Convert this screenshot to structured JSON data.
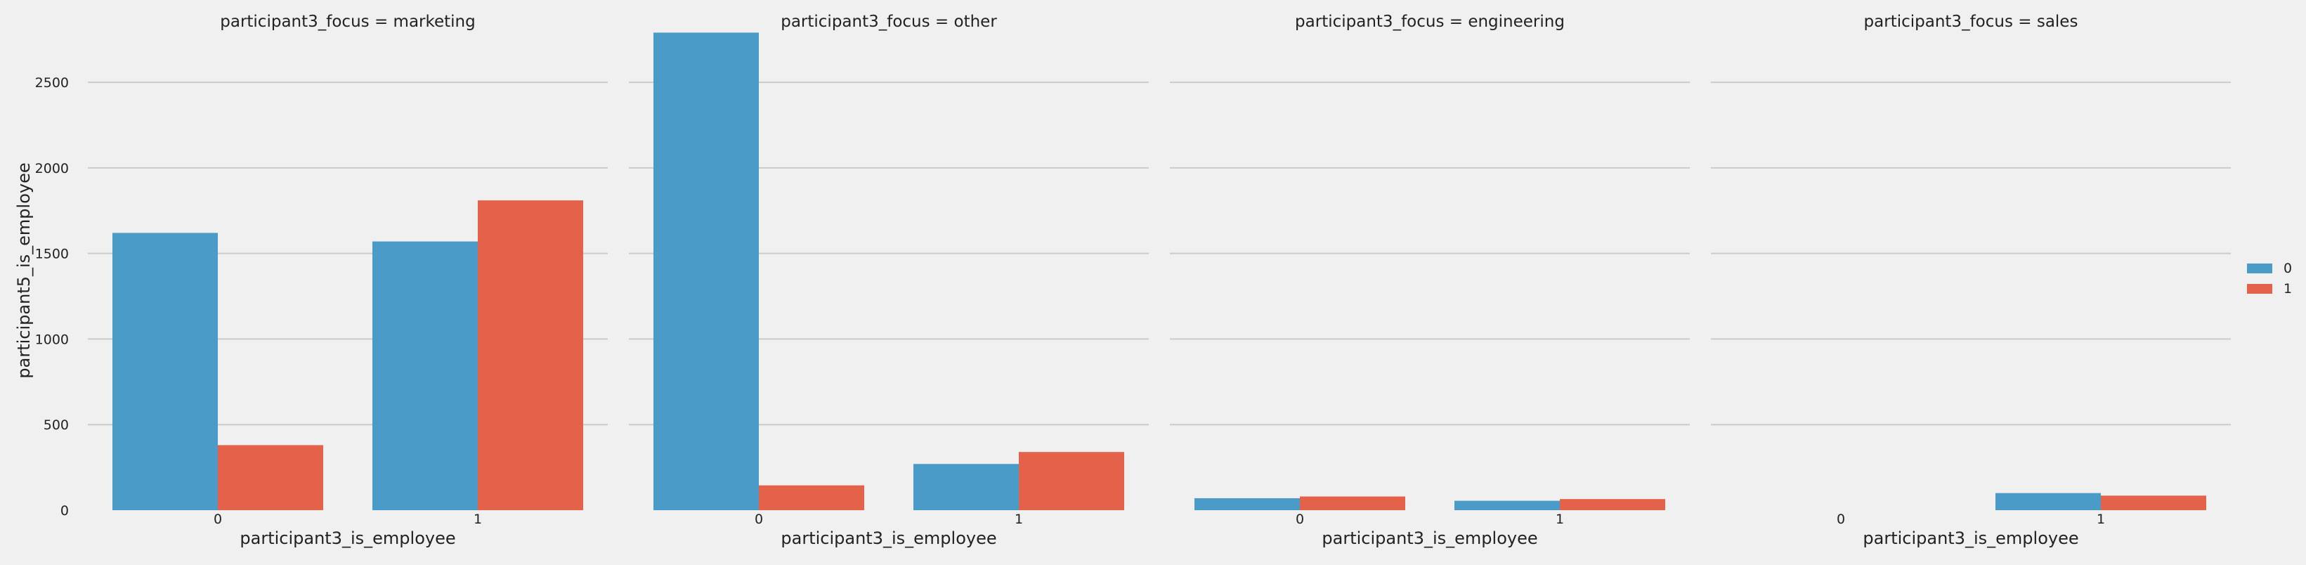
{
  "chart_data": {
    "type": "bar",
    "ylabel": "participant5_is_employee",
    "xlabel": "participant3_is_employee",
    "ylim": [
      0,
      2800
    ],
    "yticks": [
      0,
      500,
      1000,
      1500,
      2000,
      2500
    ],
    "grid": true,
    "legend": {
      "placement": "right",
      "entries": [
        {
          "label": "0",
          "color": "#4a9bc8"
        },
        {
          "label": "1",
          "color": "#e4614a"
        }
      ]
    },
    "categories": [
      "0",
      "1"
    ],
    "panels": [
      {
        "title": "participant3_focus = marketing",
        "series": [
          {
            "name": "0",
            "values": [
              1620,
              1570
            ]
          },
          {
            "name": "1",
            "values": [
              380,
              1810
            ]
          }
        ]
      },
      {
        "title": "participant3_focus = other",
        "series": [
          {
            "name": "0",
            "values": [
              2790,
              270
            ]
          },
          {
            "name": "1",
            "values": [
              145,
              340
            ]
          }
        ]
      },
      {
        "title": "participant3_focus = engineering",
        "series": [
          {
            "name": "0",
            "values": [
              70,
              55
            ]
          },
          {
            "name": "1",
            "values": [
              80,
              65
            ]
          }
        ]
      },
      {
        "title": "participant3_focus = sales",
        "series": [
          {
            "name": "0",
            "values": [
              0,
              100
            ]
          },
          {
            "name": "1",
            "values": [
              0,
              85
            ]
          }
        ]
      }
    ]
  }
}
